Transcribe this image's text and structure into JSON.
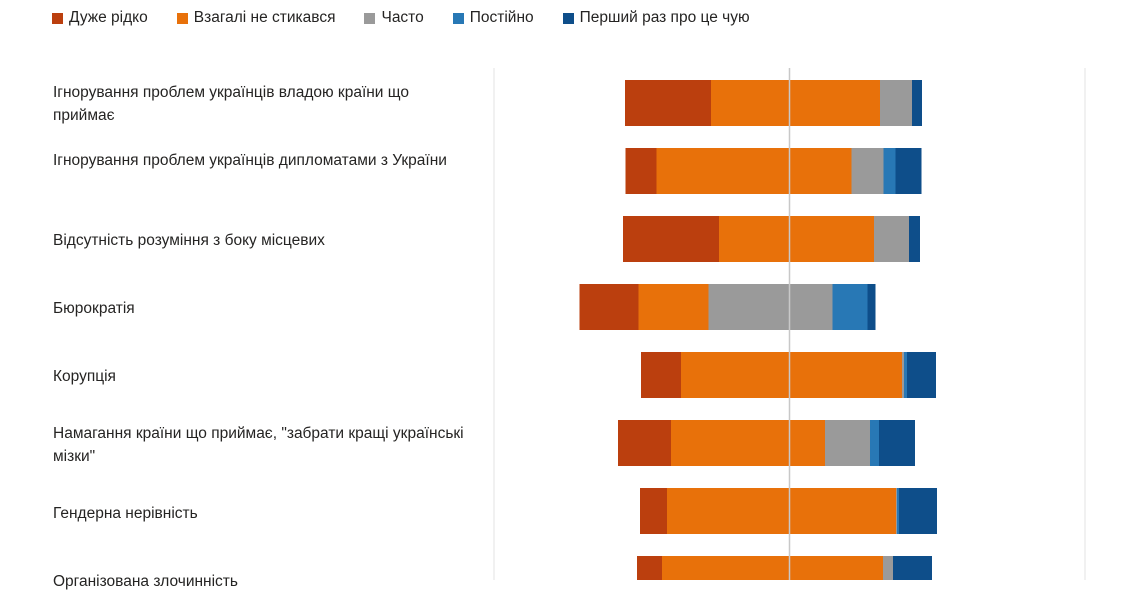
{
  "chart_data": {
    "type": "bar",
    "orientation": "horizontal",
    "stacked": "diverging",
    "title": "",
    "xlabel": "",
    "ylabel": "",
    "legend_position": "top-left",
    "grid": false,
    "series": [
      {
        "name": "Дуже рідко",
        "color": "#BB3F0E",
        "values": [
          86,
          31,
          96,
          59,
          40,
          53,
          27,
          25
        ]
      },
      {
        "name": "Взагалі не стикався",
        "color": "#E8710A",
        "values": [
          169,
          195,
          155,
          70,
          221,
          154,
          229,
          221
        ]
      },
      {
        "name": "Часто",
        "color": "#9A9A9A",
        "values": [
          32,
          32,
          35,
          124,
          2,
          45,
          1,
          10
        ]
      },
      {
        "name": "Постійно",
        "color": "#2878B5",
        "values": [
          0,
          12,
          0,
          35,
          3,
          9,
          2,
          0
        ]
      },
      {
        "name": "Перший раз про це чую",
        "color": "#0E4E8A",
        "values": [
          10,
          26,
          11,
          8,
          29,
          36,
          38,
          39
        ]
      }
    ],
    "categories": [
      "Ігнорування проблем українців владою країни що приймає",
      "Ігнорування проблем українців дипломатами з України",
      "Відсутність розуміння з боку місцевих",
      "Бюрократія",
      "Корупція",
      "Намагання країни що приймає, \"забрати кращі українські мізки\"",
      "Гендерна нерівність",
      "Організована злочинність"
    ],
    "center_offset": [
      16,
      16,
      18,
      62,
      1,
      23,
      1,
      5
    ]
  }
}
